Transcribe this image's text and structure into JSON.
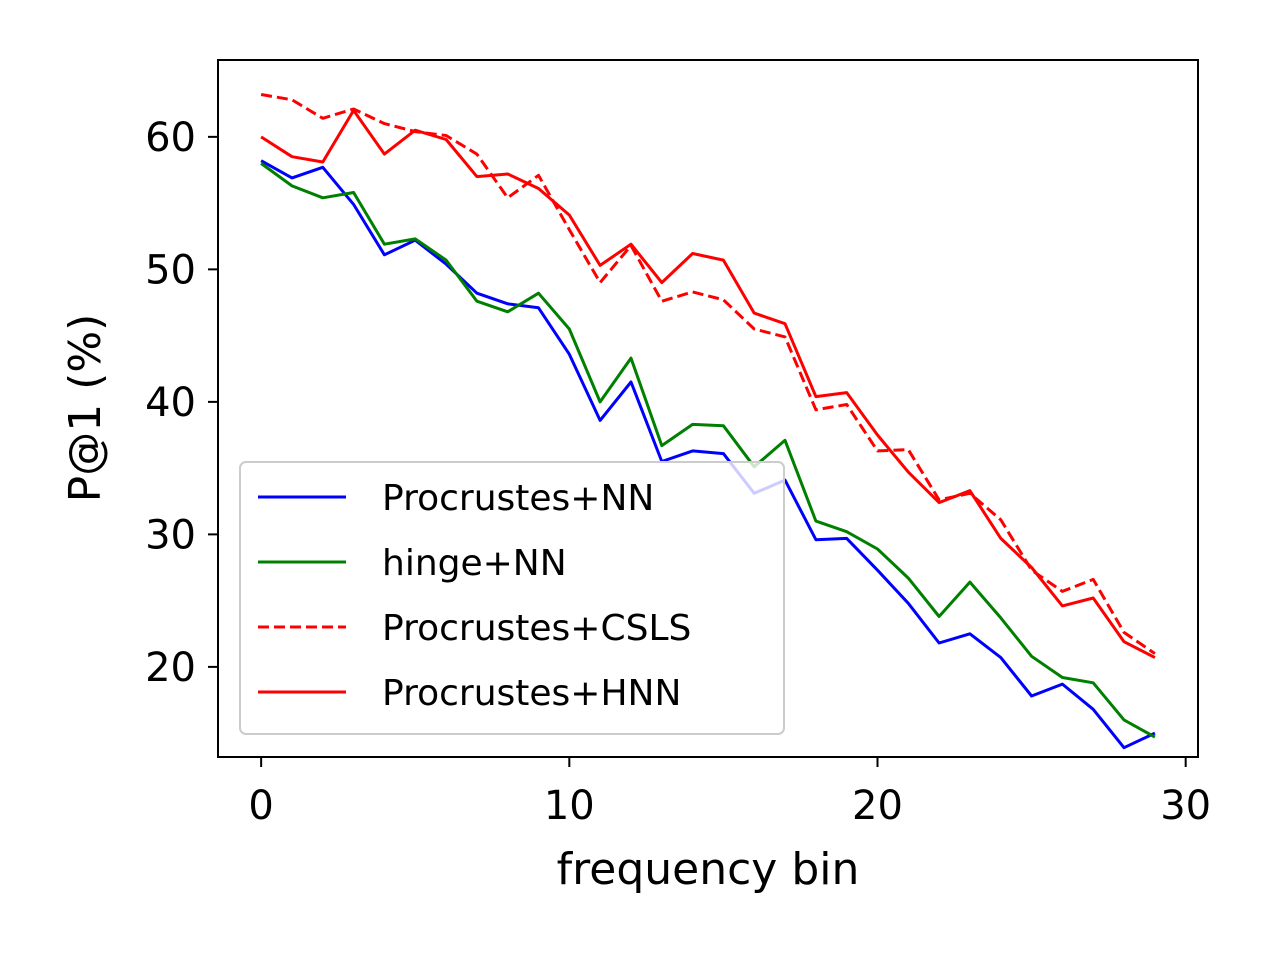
{
  "chart_data": {
    "type": "line",
    "title": "",
    "xlabel": "frequency bin",
    "ylabel": "P@1 (%)",
    "xlim": [
      -1.4,
      30.4
    ],
    "ylim": [
      13.2,
      65.8
    ],
    "xticks": [
      0,
      10,
      20,
      30
    ],
    "yticks": [
      20,
      30,
      40,
      50,
      60
    ],
    "grid": false,
    "legend_position": "lower-left",
    "x": [
      0,
      1,
      2,
      3,
      4,
      5,
      6,
      7,
      8,
      9,
      10,
      11,
      12,
      13,
      14,
      15,
      16,
      17,
      18,
      19,
      20,
      21,
      22,
      23,
      24,
      25,
      26,
      27,
      28,
      29
    ],
    "series": [
      {
        "name": "Procrustes+NN",
        "color": "#0000ff",
        "dash": "solid",
        "values": [
          58.2,
          56.9,
          57.7,
          54.9,
          51.1,
          52.2,
          50.4,
          48.2,
          47.4,
          47.1,
          43.6,
          38.6,
          41.5,
          35.5,
          36.3,
          36.1,
          33.1,
          34.1,
          29.6,
          29.7,
          27.3,
          24.8,
          21.8,
          22.5,
          20.7,
          17.8,
          18.7,
          16.8,
          13.9,
          15.0
        ]
      },
      {
        "name": "hinge+NN",
        "color": "#008000",
        "dash": "solid",
        "values": [
          58.0,
          56.3,
          55.4,
          55.8,
          51.9,
          52.3,
          50.7,
          47.6,
          46.8,
          48.2,
          45.5,
          40.0,
          43.3,
          36.7,
          38.3,
          38.2,
          35.1,
          37.1,
          31.0,
          30.2,
          28.9,
          26.7,
          23.8,
          26.4,
          23.7,
          20.8,
          19.2,
          18.8,
          16.0,
          14.7
        ]
      },
      {
        "name": "Procrustes+CSLS",
        "color": "#ff0000",
        "dash": "dashed",
        "values": [
          63.2,
          62.8,
          61.4,
          62.1,
          61.0,
          60.4,
          60.1,
          58.7,
          55.4,
          57.1,
          53.0,
          49.0,
          51.8,
          47.6,
          48.3,
          47.7,
          45.5,
          44.9,
          39.4,
          39.8,
          36.3,
          36.4,
          32.6,
          33.1,
          31.1,
          27.3,
          25.7,
          26.6,
          22.6,
          21.0
        ]
      },
      {
        "name": "Procrustes+HNN",
        "color": "#ff0000",
        "dash": "solid",
        "values": [
          60.0,
          58.5,
          58.1,
          62.0,
          58.7,
          60.5,
          59.8,
          57.0,
          57.2,
          56.1,
          54.1,
          50.3,
          51.9,
          49.0,
          51.2,
          50.7,
          46.7,
          45.9,
          40.4,
          40.7,
          37.5,
          34.7,
          32.4,
          33.3,
          29.7,
          27.5,
          24.6,
          25.2,
          21.9,
          20.7
        ]
      }
    ]
  }
}
